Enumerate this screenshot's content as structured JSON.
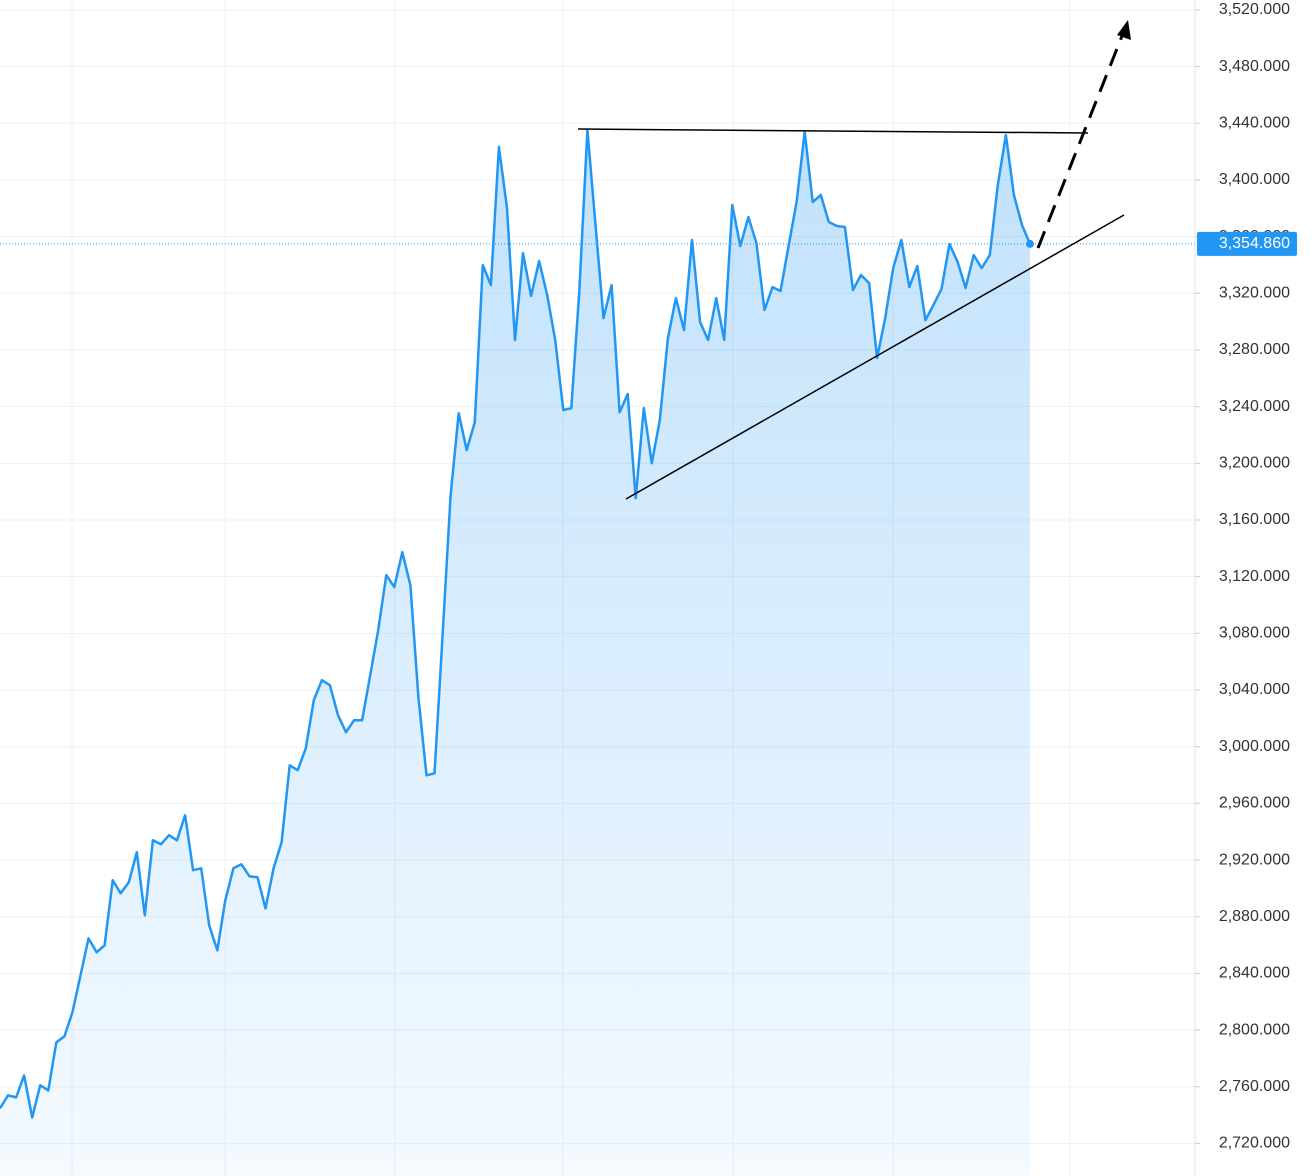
{
  "chart_data": {
    "type": "area",
    "values": [
      2744.7,
      2753.9,
      2752.5,
      2768,
      2738.3,
      2761,
      2757.4,
      2791.3,
      2795.5,
      2812.5,
      2838.6,
      2864.7,
      2854.9,
      2859.8,
      2905.7,
      2896.5,
      2904.3,
      2925.5,
      2881,
      2933.9,
      2931.1,
      2937.5,
      2933.9,
      2951.6,
      2912.8,
      2914.2,
      2873.9,
      2856.3,
      2891.6,
      2914.2,
      2917,
      2908.5,
      2907.8,
      2885.9,
      2914.2,
      2932.5,
      2986.9,
      2983.4,
      2998.9,
      3032.8,
      3046.9,
      3043.4,
      3022.2,
      3010.2,
      3018.7,
      3018.7,
      3050.4,
      3082.2,
      3121.1,
      3112.6,
      3137.3,
      3114,
      3034.9,
      2979.8,
      2981.2,
      3078.7,
      3177.5,
      3235.4,
      3209.3,
      3229.1,
      3339.9,
      3325.8,
      3423.3,
      3380.2,
      3287,
      3348.4,
      3318.1,
      3342.8,
      3318.8,
      3287,
      3237.6,
      3239,
      3322.3,
      3435.3,
      3368.2,
      3302.5,
      3325.8,
      3236.1,
      3248.9,
      3175.4,
      3239,
      3200.1,
      3230.5,
      3288.4,
      3316.6,
      3294,
      3357.6,
      3299.7,
      3287,
      3316.6,
      3287,
      3382.3,
      3353.4,
      3373.8,
      3355.5,
      3308.2,
      3324.4,
      3321.6,
      3353.4,
      3384.4,
      3433.9,
      3384.4,
      3389.4,
      3370.3,
      3367.5,
      3366.8,
      3322.3,
      3332.9,
      3327.2,
      3274.3,
      3302.5,
      3337.8,
      3357.6,
      3324.4,
      3339.2,
      3301.1,
      3311.7,
      3323,
      3354.8,
      3342.1,
      3323.7,
      3347,
      3337.8,
      3347,
      3396.4,
      3431.7,
      3389.4,
      3368.2,
      3354.86
    ],
    "color": "#2196f3",
    "ylim": [
      2697,
      3527
    ],
    "yticks": [
      {
        "value": 2720,
        "label": "2,720.000"
      },
      {
        "value": 2760,
        "label": "2,760.000"
      },
      {
        "value": 2800,
        "label": "2,800.000"
      },
      {
        "value": 2840,
        "label": "2,840.000"
      },
      {
        "value": 2880,
        "label": "2,880.000"
      },
      {
        "value": 2920,
        "label": "2,920.000"
      },
      {
        "value": 2960,
        "label": "2,960.000"
      },
      {
        "value": 3000,
        "label": "3,000.000"
      },
      {
        "value": 3040,
        "label": "3,040.000"
      },
      {
        "value": 3080,
        "label": "3,080.000"
      },
      {
        "value": 3120,
        "label": "3,120.000"
      },
      {
        "value": 3160,
        "label": "3,160.000"
      },
      {
        "value": 3200,
        "label": "3,200.000"
      },
      {
        "value": 3240,
        "label": "3,240.000"
      },
      {
        "value": 3280,
        "label": "3,280.000"
      },
      {
        "value": 3320,
        "label": "3,320.000"
      },
      {
        "value": 3360,
        "label": "3,360.000"
      },
      {
        "value": 3400,
        "label": "3,400.000"
      },
      {
        "value": 3440,
        "label": "3,440.000"
      },
      {
        "value": 3480,
        "label": "3,480.000"
      },
      {
        "value": 3520,
        "label": "3,520.000"
      }
    ],
    "grid": true,
    "last_price": {
      "value": 3354.86,
      "label": "3,354.860"
    }
  }
}
